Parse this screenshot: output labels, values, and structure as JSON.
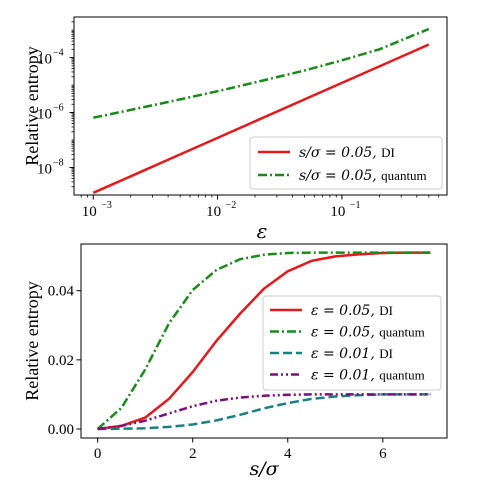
{
  "chart_data": [
    {
      "type": "line",
      "title": "",
      "xlabel": "ε",
      "ylabel": "Relative entropy",
      "xscale": "log",
      "yscale": "log",
      "xlim": [
        0.0007,
        0.7
      ],
      "ylim": [
        1e-09,
        0.003
      ],
      "xticks": [
        {
          "value": 0.001,
          "base": "10",
          "exp": "−3"
        },
        {
          "value": 0.01,
          "base": "10",
          "exp": "−2"
        },
        {
          "value": 0.1,
          "base": "10",
          "exp": "−1"
        }
      ],
      "yticks": [
        {
          "value": 1e-08,
          "base": "10",
          "exp": "−8"
        },
        {
          "value": 1e-06,
          "base": "10",
          "exp": "−6"
        },
        {
          "value": 0.0001,
          "base": "10",
          "exp": "−4"
        }
      ],
      "legend_position": "lower-right",
      "series": [
        {
          "name_math": "s/σ = 0.05,",
          "name_text": "DI",
          "color": "#e31a1c",
          "dash": "solid",
          "x": [
            0.001,
            0.002,
            0.005,
            0.01,
            0.02,
            0.05,
            0.1,
            0.2,
            0.5
          ],
          "y": [
            1.2e-09,
            4.8e-09,
            3e-08,
            1.2e-07,
            4.8e-07,
            3e-06,
            1.2e-05,
            4.8e-05,
            0.0003
          ]
        },
        {
          "name_math": "s/σ = 0.05,",
          "name_text": "quantum",
          "color": "#1a8a1a",
          "dash": "dashdot",
          "x": [
            0.001,
            0.002,
            0.005,
            0.01,
            0.02,
            0.05,
            0.1,
            0.2,
            0.5
          ],
          "y": [
            6.5e-07,
            1.25e-06,
            3e-06,
            6e-06,
            1.25e-05,
            3.4e-05,
            8e-05,
            0.0002,
            0.0011
          ]
        }
      ]
    },
    {
      "type": "line",
      "title": "",
      "xlabel": "s/σ",
      "ylabel": "Relative entropy",
      "xlim": [
        -0.35,
        7.35
      ],
      "ylim": [
        -0.0026,
        0.0535
      ],
      "xticks": [
        0,
        2,
        4,
        6
      ],
      "yticks": [
        "0.00",
        "0.02",
        "0.04"
      ],
      "ytick_values": [
        0,
        0.02,
        0.04
      ],
      "legend_position": "center-right",
      "series": [
        {
          "name_math": "ε = 0.05,",
          "name_text": "DI",
          "color": "#e31a1c",
          "dash": "solid",
          "x": [
            0,
            0.5,
            1,
            1.5,
            2,
            2.5,
            3,
            3.5,
            4,
            4.5,
            5,
            5.5,
            6,
            6.5,
            7
          ],
          "y": [
            0,
            0.0009,
            0.0033,
            0.0087,
            0.0165,
            0.0255,
            0.0334,
            0.0406,
            0.0456,
            0.0486,
            0.0499,
            0.0505,
            0.0509,
            0.051,
            0.051
          ]
        },
        {
          "name_math": "ε = 0.05,",
          "name_text": "quantum",
          "color": "#1a8a1a",
          "dash": "dashdot",
          "x": [
            0,
            0.5,
            1,
            1.5,
            2,
            2.5,
            3,
            3.5,
            4,
            4.5,
            5,
            5.5,
            6,
            6.5,
            7
          ],
          "y": [
            0,
            0.0061,
            0.0172,
            0.0305,
            0.0402,
            0.046,
            0.0491,
            0.0504,
            0.0509,
            0.051,
            0.051,
            0.051,
            0.051,
            0.051,
            0.051
          ]
        },
        {
          "name_math": "ε = 0.01,",
          "name_text": "DI",
          "color": "#1a8080",
          "dash": "dashed",
          "x": [
            0,
            0.5,
            1,
            1.5,
            2,
            2.5,
            3,
            3.5,
            4,
            4.5,
            5,
            5.5,
            6,
            6.5,
            7
          ],
          "y": [
            0,
            0.0001,
            0.0002,
            0.0006,
            0.0013,
            0.0025,
            0.0041,
            0.006,
            0.0075,
            0.0087,
            0.0094,
            0.0098,
            0.01,
            0.01,
            0.01
          ]
        },
        {
          "name_math": "ε = 0.01,",
          "name_text": "quantum",
          "color": "#7b0f7b",
          "dash": "dashdotdot",
          "x": [
            0,
            0.5,
            1,
            1.5,
            2,
            2.5,
            3,
            3.5,
            4,
            4.5,
            5,
            5.5,
            6,
            6.5,
            7
          ],
          "y": [
            0,
            0.0009,
            0.0024,
            0.0045,
            0.0066,
            0.0082,
            0.0091,
            0.0096,
            0.0099,
            0.01,
            0.01,
            0.01,
            0.01,
            0.01,
            0.01
          ]
        }
      ]
    }
  ]
}
